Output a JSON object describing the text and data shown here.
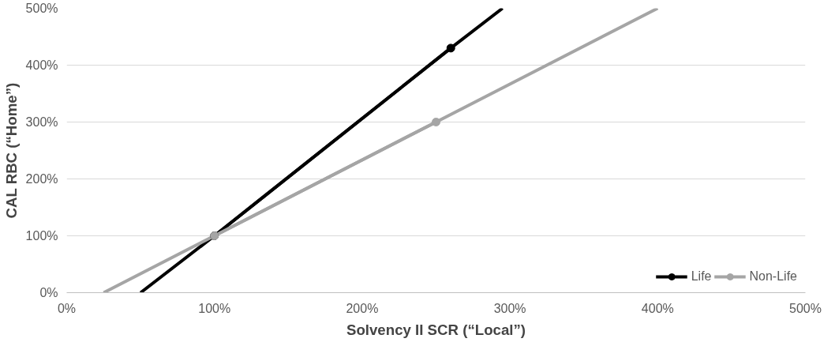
{
  "chart_data": {
    "type": "line",
    "xlabel": "Solvency II SCR (“Local”)",
    "ylabel": "CAL RBC (“Home”)",
    "xlim": [
      0,
      500
    ],
    "ylim": [
      0,
      500
    ],
    "xticks": [
      {
        "value": 0,
        "label": "0%"
      },
      {
        "value": 100,
        "label": "100%"
      },
      {
        "value": 200,
        "label": "200%"
      },
      {
        "value": 300,
        "label": "300%"
      },
      {
        "value": 400,
        "label": "400%"
      },
      {
        "value": 500,
        "label": "500%"
      }
    ],
    "yticks": [
      {
        "value": 0,
        "label": "0%"
      },
      {
        "value": 100,
        "label": "100%"
      },
      {
        "value": 200,
        "label": "200%"
      },
      {
        "value": 300,
        "label": "300%"
      },
      {
        "value": 400,
        "label": "400%"
      },
      {
        "value": 500,
        "label": "500%"
      }
    ],
    "grid": "y",
    "legend": "bottom right",
    "line_style": "solid",
    "series": [
      {
        "name": "Life",
        "color": "#000000",
        "x": [
          100,
          260
        ],
        "values": [
          100,
          430
        ],
        "marker": "circle"
      },
      {
        "name": "Non-Life",
        "color": "#a5a5a5",
        "x": [
          100,
          250
        ],
        "values": [
          100,
          300
        ],
        "marker": "circle"
      },
      {
        "color": "#000000",
        "x": [
          50,
          100,
          260,
          295
        ],
        "values": [
          0,
          100,
          430,
          500
        ]
      },
      {
        "color": "#a5a5a5",
        "x": [
          25,
          100,
          250,
          400
        ],
        "values": [
          0,
          100,
          300,
          500
        ]
      }
    ]
  }
}
